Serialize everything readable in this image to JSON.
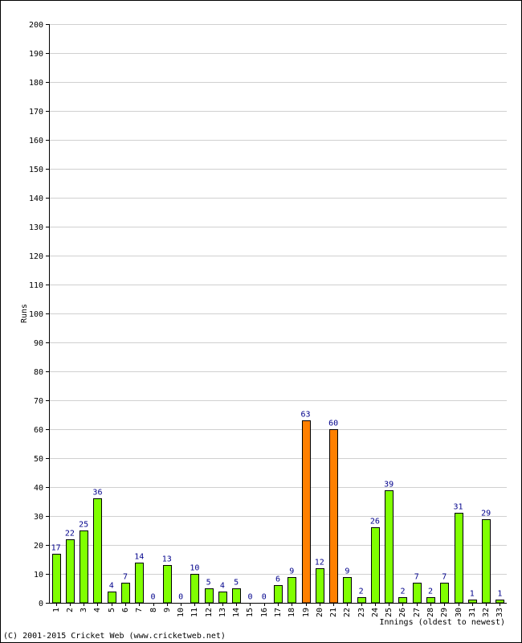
{
  "chart_data": {
    "type": "bar",
    "ylabel": "Runs",
    "xlabel": "Innings (oldest to newest)",
    "ylim": [
      0,
      200
    ],
    "ytick_step": 10,
    "grid": true,
    "categories": [
      "1",
      "2",
      "3",
      "4",
      "5",
      "6",
      "7",
      "8",
      "9",
      "10",
      "11",
      "12",
      "13",
      "14",
      "15",
      "16",
      "17",
      "18",
      "19",
      "20",
      "21",
      "22",
      "23",
      "24",
      "25",
      "26",
      "27",
      "28",
      "29",
      "30",
      "31",
      "32",
      "33"
    ],
    "values": [
      17,
      22,
      25,
      36,
      4,
      7,
      14,
      0,
      13,
      0,
      10,
      5,
      4,
      5,
      0,
      0,
      6,
      9,
      63,
      12,
      60,
      9,
      2,
      26,
      39,
      2,
      7,
      2,
      7,
      31,
      1,
      29,
      1
    ],
    "colors": {
      "default_bar": "#80ff00",
      "highlight_bar": "#ff8000",
      "bar_outline": "#000000",
      "data_label": "#00008b",
      "grid": "#d0d0d0"
    },
    "highlight_threshold": 50
  },
  "footer": {
    "copyright": "(C) 2001-2015 Cricket Web (www.cricketweb.net)"
  }
}
